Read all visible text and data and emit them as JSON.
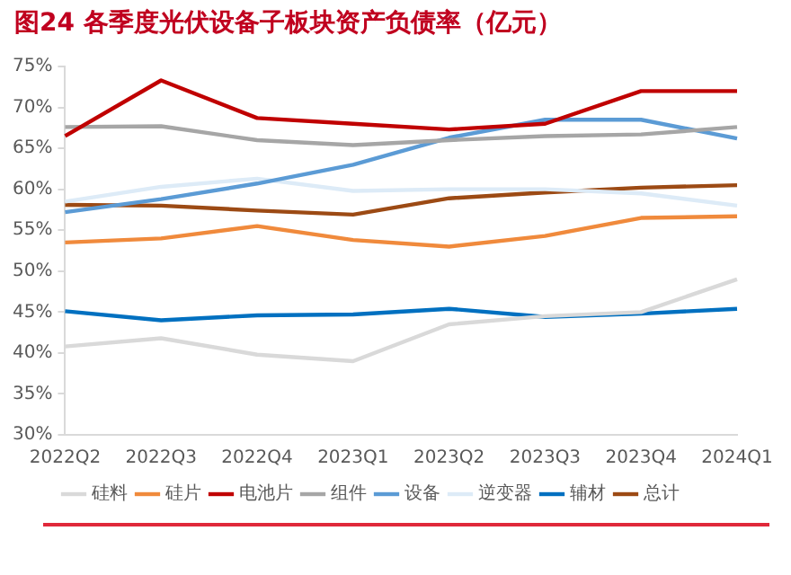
{
  "chart_data": {
    "type": "line",
    "title": "图24 各季度光伏设备子板块资产负债率（亿元）",
    "categories": [
      "2022Q2",
      "2022Q3",
      "2022Q4",
      "2023Q1",
      "2023Q2",
      "2023Q3",
      "2023Q4",
      "2024Q1"
    ],
    "series": [
      {
        "name": "硅料",
        "color": "#d9d9d9",
        "values": [
          40.8,
          41.8,
          39.8,
          39.0,
          43.5,
          44.5,
          45.0,
          49.0
        ]
      },
      {
        "name": "硅片",
        "color": "#f08a3c",
        "values": [
          53.5,
          54.0,
          55.5,
          53.8,
          53.0,
          54.3,
          56.5,
          56.7
        ]
      },
      {
        "name": "电池片",
        "color": "#c00000",
        "values": [
          66.5,
          73.3,
          68.7,
          68.0,
          67.3,
          68.0,
          72.0,
          72.0
        ]
      },
      {
        "name": "组件",
        "color": "#a6a6a6",
        "values": [
          67.6,
          67.7,
          66.0,
          65.4,
          66.0,
          66.5,
          66.7,
          67.6
        ]
      },
      {
        "name": "设备",
        "color": "#5b9bd5",
        "values": [
          57.2,
          58.8,
          60.7,
          63.0,
          66.3,
          68.5,
          68.5,
          66.2
        ]
      },
      {
        "name": "逆变器",
        "color": "#ddebf7",
        "values": [
          58.5,
          60.3,
          61.3,
          59.8,
          60.0,
          60.0,
          59.5,
          58.0
        ]
      },
      {
        "name": "辅材",
        "color": "#0070c0",
        "values": [
          45.1,
          44.0,
          44.6,
          44.7,
          45.4,
          44.4,
          44.8,
          45.4
        ]
      },
      {
        "name": "总计",
        "color": "#9c4a14",
        "values": [
          58.1,
          58.0,
          57.4,
          56.9,
          58.9,
          59.6,
          60.2,
          60.5
        ]
      }
    ],
    "ylim": [
      30,
      75
    ],
    "yticks": [
      {
        "value": 30,
        "label": "30%"
      },
      {
        "value": 35,
        "label": "35%"
      },
      {
        "value": 40,
        "label": "40%"
      },
      {
        "value": 45,
        "label": "45%"
      },
      {
        "value": 50,
        "label": "50%"
      },
      {
        "value": 55,
        "label": "55%"
      },
      {
        "value": 60,
        "label": "60%"
      },
      {
        "value": 65,
        "label": "65%"
      },
      {
        "value": 70,
        "label": "70%"
      },
      {
        "value": 75,
        "label": "75%"
      }
    ],
    "grid": false,
    "legend": "bottom",
    "marker": "none",
    "line_style": "solid"
  }
}
